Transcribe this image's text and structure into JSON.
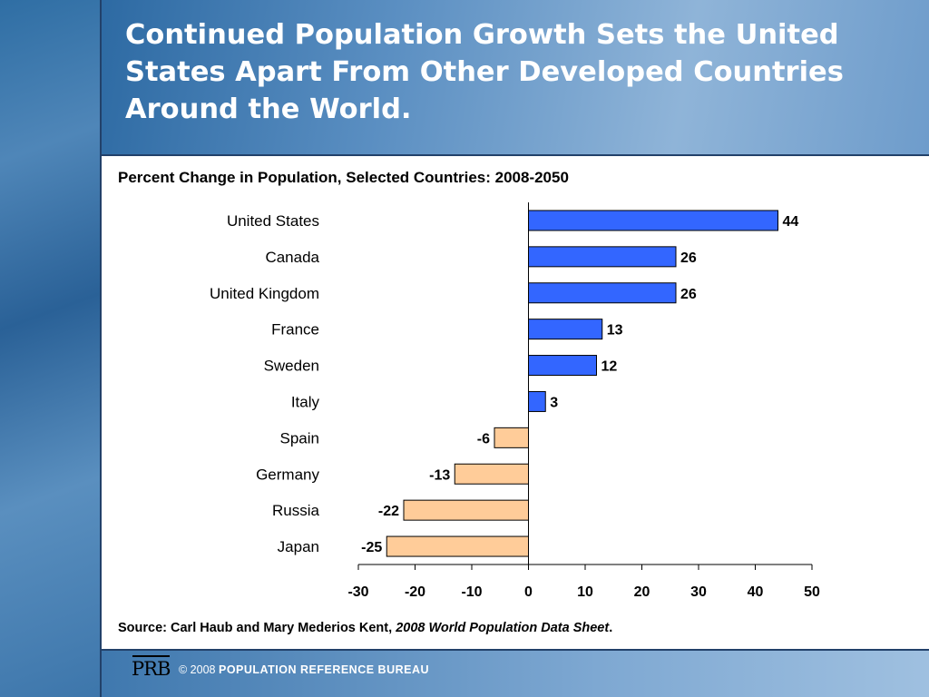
{
  "slide": {
    "title": "Continued Population Growth Sets the United States Apart From Other Developed Countries Around the World."
  },
  "chart_data": {
    "type": "bar",
    "orientation": "horizontal",
    "title": "Percent Change in Population, Selected Countries: 2008-2050",
    "categories": [
      "United States",
      "Canada",
      "United Kingdom",
      "France",
      "Sweden",
      "Italy",
      "Spain",
      "Germany",
      "Russia",
      "Japan"
    ],
    "values": [
      44,
      26,
      26,
      13,
      12,
      3,
      -6,
      -13,
      -22,
      -25
    ],
    "value_labels": [
      "44",
      "26",
      "26",
      "13",
      "12",
      "3",
      "-6",
      "-13",
      "-22",
      "-25"
    ],
    "xlim": [
      -30,
      50
    ],
    "x_ticks": [
      "-30",
      "-20",
      "-10",
      "0",
      "10",
      "20",
      "30",
      "40",
      "50"
    ],
    "xlabel": "",
    "ylabel": "",
    "grid": false,
    "colors": {
      "positive": "#3366ff",
      "negative": "#ffcc99",
      "edge": "#000000"
    }
  },
  "source": {
    "prefix": "Source: Carl Haub and Mary Mederios Kent, ",
    "publication": "2008 World Population Data Sheet",
    "suffix": "."
  },
  "footer": {
    "logo_text": "PRB",
    "copyright": "© 2008",
    "organization": "POPULATION REFERENCE BUREAU"
  }
}
